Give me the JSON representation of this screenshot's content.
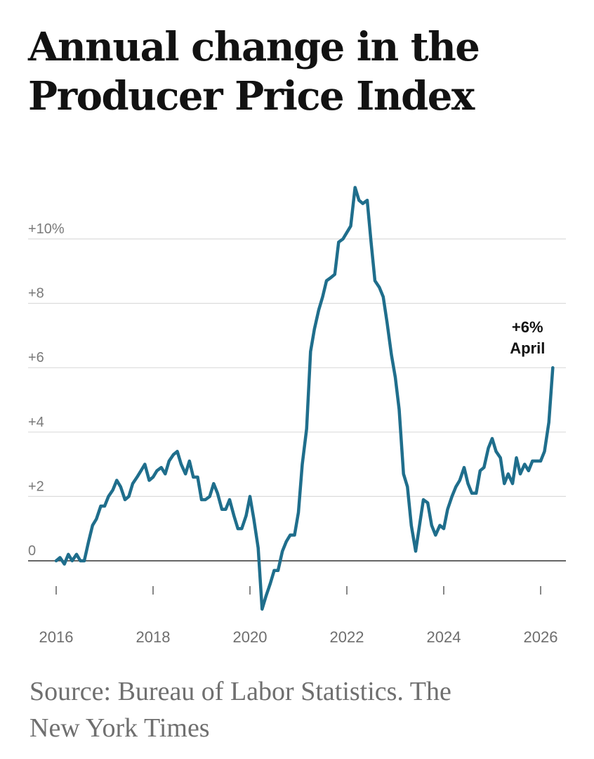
{
  "header": {
    "title_line1": "Annual change in the",
    "title_line2": "Producer Price Index"
  },
  "footer": {
    "source_line1": "Source: Bureau of Labor Statistics.  The",
    "source_line2": "New York Times"
  },
  "colors": {
    "line": "#1f6e8c",
    "grid": "#dcdcdc",
    "zero_axis": "#333333"
  },
  "chart_data": {
    "type": "line",
    "title": "Annual change in the Producer Price Index",
    "xlabel": "",
    "ylabel": "",
    "xlim": [
      2016,
      2026.5
    ],
    "ylim": [
      -1.6,
      11.8
    ],
    "grid": true,
    "y_ticks": [
      {
        "value": 0,
        "label": "0"
      },
      {
        "value": 2,
        "label": "+2"
      },
      {
        "value": 4,
        "label": "+4"
      },
      {
        "value": 6,
        "label": "+6"
      },
      {
        "value": 8,
        "label": "+8"
      },
      {
        "value": 10,
        "label": "+10%"
      }
    ],
    "x_ticks": [
      {
        "value": 2016,
        "label": "2016"
      },
      {
        "value": 2018,
        "label": "2018"
      },
      {
        "value": 2020,
        "label": "2020"
      },
      {
        "value": 2022,
        "label": "2022"
      },
      {
        "value": 2024,
        "label": "2024"
      },
      {
        "value": 2026,
        "label": "2026"
      }
    ],
    "annotation": {
      "x": 2026.25,
      "y": 6,
      "value_label": "+6%",
      "month_label": "April"
    },
    "series": [
      {
        "x": [
          2016.0,
          2016.08,
          2016.17,
          2016.25,
          2016.33,
          2016.42,
          2016.5,
          2016.58,
          2016.67,
          2016.75,
          2016.83,
          2016.92,
          2017.0,
          2017.08,
          2017.17,
          2017.25,
          2017.33,
          2017.42,
          2017.5,
          2017.58,
          2017.67,
          2017.75,
          2017.83,
          2017.92,
          2018.0,
          2018.08,
          2018.17,
          2018.25,
          2018.33,
          2018.42,
          2018.5,
          2018.58,
          2018.67,
          2018.75,
          2018.83,
          2018.92,
          2019.0,
          2019.08,
          2019.17,
          2019.25,
          2019.33,
          2019.42,
          2019.5,
          2019.58,
          2019.67,
          2019.75,
          2019.83,
          2019.92,
          2020.0,
          2020.08,
          2020.17,
          2020.25,
          2020.33,
          2020.42,
          2020.5,
          2020.58,
          2020.67,
          2020.75,
          2020.83,
          2020.92,
          2021.0,
          2021.08,
          2021.17,
          2021.25,
          2021.33,
          2021.42,
          2021.5,
          2021.58,
          2021.67,
          2021.75,
          2021.83,
          2021.92,
          2022.0,
          2022.08,
          2022.17,
          2022.25,
          2022.33,
          2022.42,
          2022.5,
          2022.58,
          2022.67,
          2022.75,
          2022.83,
          2022.92,
          2023.0,
          2023.08,
          2023.17,
          2023.25,
          2023.33,
          2023.42,
          2023.5,
          2023.58,
          2023.67,
          2023.75,
          2023.83,
          2023.92,
          2024.0,
          2024.08,
          2024.17,
          2024.25,
          2024.33,
          2024.42,
          2024.5,
          2024.58,
          2024.67,
          2024.75,
          2024.83,
          2024.92,
          2025.0,
          2025.08,
          2025.17,
          2025.25,
          2025.33,
          2025.42,
          2025.5,
          2025.58,
          2025.67,
          2025.75,
          2025.83,
          2025.92,
          2026.0,
          2026.08,
          2026.17,
          2026.25
        ],
        "values": [
          0.0,
          0.1,
          -0.1,
          0.2,
          0.0,
          0.2,
          0.0,
          0.0,
          0.6,
          1.1,
          1.3,
          1.7,
          1.7,
          2.0,
          2.2,
          2.5,
          2.3,
          1.9,
          2.0,
          2.4,
          2.6,
          2.8,
          3.0,
          2.5,
          2.6,
          2.8,
          2.9,
          2.7,
          3.1,
          3.3,
          3.4,
          3.0,
          2.7,
          3.1,
          2.6,
          2.6,
          1.9,
          1.9,
          2.0,
          2.4,
          2.1,
          1.6,
          1.6,
          1.9,
          1.4,
          1.0,
          1.0,
          1.4,
          2.0,
          1.3,
          0.4,
          -1.5,
          -1.1,
          -0.7,
          -0.3,
          -0.3,
          0.3,
          0.6,
          0.8,
          0.8,
          1.5,
          3.0,
          4.1,
          6.5,
          7.2,
          7.8,
          8.2,
          8.7,
          8.8,
          8.9,
          9.9,
          10.0,
          10.2,
          10.4,
          11.6,
          11.2,
          11.1,
          11.2,
          9.9,
          8.7,
          8.5,
          8.2,
          7.4,
          6.4,
          5.7,
          4.7,
          2.7,
          2.3,
          1.1,
          0.3,
          1.1,
          1.9,
          1.8,
          1.1,
          0.8,
          1.1,
          1.0,
          1.6,
          2.0,
          2.3,
          2.5,
          2.9,
          2.4,
          2.1,
          2.1,
          2.8,
          2.9,
          3.5,
          3.8,
          3.4,
          3.2,
          2.4,
          2.7,
          2.4,
          3.2,
          2.7,
          3.0,
          2.8,
          3.1,
          3.1,
          3.1,
          3.4,
          4.3,
          6.0
        ]
      }
    ]
  }
}
